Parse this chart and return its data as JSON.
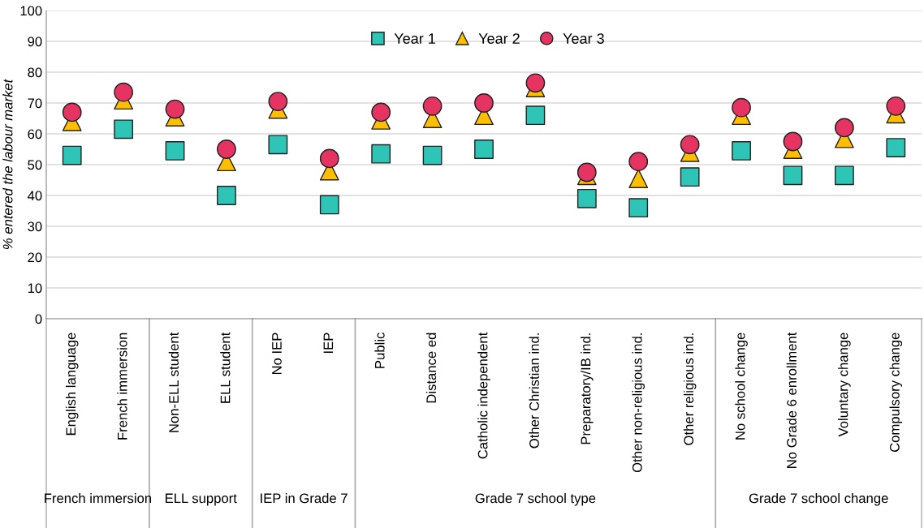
{
  "chart_data": {
    "type": "scatter",
    "ylabel": "% entered the labour market",
    "categories": [
      "English language",
      "French immersion",
      "Non-ELL student",
      "ELL student",
      "No IEP",
      "IEP",
      "Public",
      "Distance ed",
      "Catholic independent",
      "Other Christian ind.",
      "Preparatory/IB ind.",
      "Other non-religious ind.",
      "Other religious ind.",
      "No school change",
      "No Grade 6 enrollment",
      "Voluntary change",
      "Compulsory change"
    ],
    "series": [
      {
        "name": "Year 1",
        "color": "#2ec4b6",
        "marker": "square",
        "values": [
          53,
          61.5,
          54.5,
          40,
          56.5,
          37,
          53.5,
          53,
          55,
          66,
          39,
          36,
          46,
          54.5,
          46.5,
          46.5,
          55.5
        ]
      },
      {
        "name": "Year 2",
        "color": "#ffbf00",
        "marker": "triangle",
        "values": [
          64,
          71,
          65.5,
          51,
          68,
          48,
          64.5,
          65,
          66,
          75,
          46.5,
          45.5,
          54,
          66,
          55,
          58.5,
          66.5
        ]
      },
      {
        "name": "Year 3",
        "color": "#e63462",
        "marker": "circle",
        "values": [
          67,
          73.5,
          68,
          55,
          70.5,
          52,
          67,
          69,
          70,
          76.5,
          47.5,
          51,
          56.5,
          68.5,
          57.5,
          62,
          69
        ]
      }
    ],
    "ylim": [
      0,
      100
    ],
    "yticks": [
      0,
      10,
      20,
      30,
      40,
      50,
      60,
      70,
      80,
      90,
      100
    ],
    "grid": "y",
    "legend": "top",
    "annotations": [
      "French immersion",
      "ELL support",
      "IEP in Grade 7",
      "Grade 7 school type",
      "Grade 7 school change"
    ]
  }
}
